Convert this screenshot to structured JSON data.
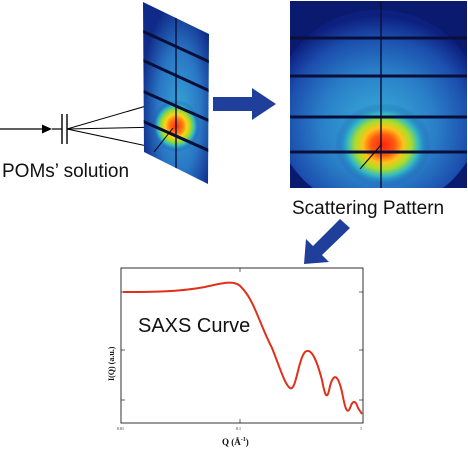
{
  "labels": {
    "solution": "POMs’ solution",
    "pattern": "Scattering Pattern",
    "curve": "SAXS Curve"
  },
  "plot": {
    "xlabel_main": "Q (Å",
    "xlabel_exp": "-1",
    "xlabel_close": ")",
    "ylabel": "I(Q) (a.u.)",
    "xticks": [
      "0.01",
      "0.1",
      "1"
    ]
  },
  "colors": {
    "arrow": "#1f3f9a",
    "curve": "#e0301a",
    "detector_bg": "#0a1a6e"
  }
}
